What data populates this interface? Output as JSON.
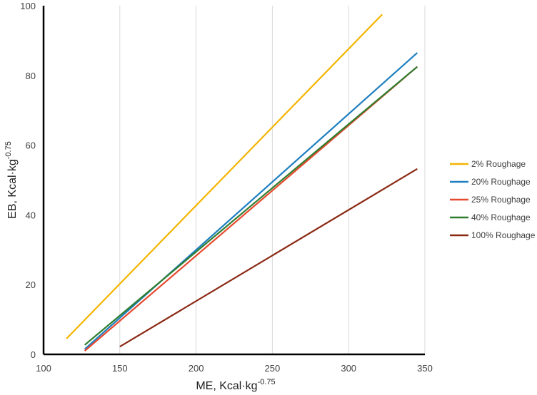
{
  "chart_data": {
    "type": "line",
    "title": "",
    "xlabel": {
      "base": "ME, Kcal·kg",
      "sup": "-0.75"
    },
    "ylabel": {
      "base": "EB, Kcal·kg",
      "sup": "-0.75"
    },
    "xlim": [
      100,
      350
    ],
    "ylim": [
      0,
      100
    ],
    "xticks": [
      100,
      150,
      200,
      250,
      300,
      350
    ],
    "yticks": [
      0,
      20,
      40,
      60,
      80,
      100
    ],
    "grid": "vertical",
    "legend_position": "right",
    "series": [
      {
        "name": "2% Roughage",
        "color": "#F4B400",
        "points": [
          [
            115,
            4.5
          ],
          [
            322,
            97.5
          ]
        ]
      },
      {
        "name": "20% Roughage",
        "color": "#1F7FC0",
        "points": [
          [
            127,
            1.5
          ],
          [
            345,
            86.5
          ]
        ]
      },
      {
        "name": "25% Roughage",
        "color": "#E6492D",
        "points": [
          [
            127,
            1.0
          ],
          [
            345,
            82.5
          ]
        ]
      },
      {
        "name": "40% Roughage",
        "color": "#2E7D2E",
        "points": [
          [
            127,
            2.7
          ],
          [
            345,
            82.5
          ]
        ]
      },
      {
        "name": "100% Roughage",
        "color": "#8B2A14",
        "points": [
          [
            150,
            2.2
          ],
          [
            345,
            53.2
          ]
        ]
      }
    ]
  }
}
